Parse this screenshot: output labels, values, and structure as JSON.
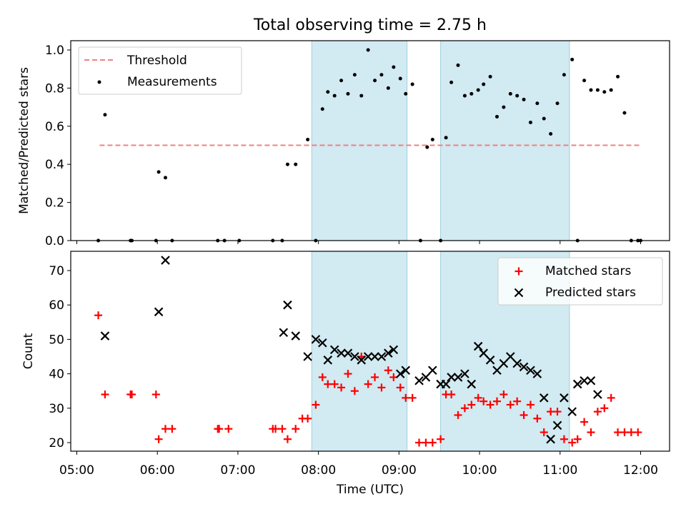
{
  "title": "Total observing time = 2.75 h",
  "colors": {
    "threshold": "#f08080",
    "measurement": "#000000",
    "matched": "#ff0000",
    "predicted": "#000000",
    "shade": "#add8e6"
  },
  "chart_data": [
    {
      "type": "scatter",
      "ylabel": "Matched/Predicted stars",
      "xlabel": "",
      "xlim": [
        "05:00",
        "12:00"
      ],
      "ylim": [
        0,
        1.05
      ],
      "yticks": [
        0.0,
        0.2,
        0.4,
        0.6,
        0.8,
        1.0
      ],
      "ytick_labels": [
        "0.0",
        "0.2",
        "0.4",
        "0.6",
        "0.8",
        "1.0"
      ],
      "shaded_intervals": [
        [
          "07:55",
          "09:06"
        ],
        [
          "09:31",
          "11:07"
        ]
      ],
      "legend": {
        "position": "upper-left",
        "threshold_label": "Threshold",
        "measurements_label": "Measurements"
      },
      "threshold": {
        "value": 0.5,
        "x_range": [
          "05:17",
          "12:00"
        ]
      },
      "series": [
        {
          "name": "Measurements",
          "marker": "dot",
          "x": [
            "05:16",
            "05:21",
            "05:40",
            "05:41",
            "05:59",
            "06:01",
            "06:06",
            "06:11",
            "06:45",
            "06:50",
            "07:01",
            "07:26",
            "07:33",
            "07:37",
            "07:43",
            "07:52",
            "07:58",
            "08:03",
            "08:07",
            "08:12",
            "08:17",
            "08:22",
            "08:27",
            "08:32",
            "08:37",
            "08:42",
            "08:47",
            "08:52",
            "08:56",
            "09:01",
            "09:05",
            "09:10",
            "09:16",
            "09:21",
            "09:25",
            "09:31",
            "09:35",
            "09:39",
            "09:44",
            "09:49",
            "09:54",
            "09:59",
            "10:03",
            "10:08",
            "10:13",
            "10:18",
            "10:23",
            "10:28",
            "10:33",
            "10:38",
            "10:43",
            "10:48",
            "10:53",
            "10:58",
            "11:03",
            "11:09",
            "11:13",
            "11:18",
            "11:23",
            "11:28",
            "11:33",
            "11:38",
            "11:43",
            "11:48",
            "11:53",
            "11:58",
            "12:00"
          ],
          "y": [
            0.0,
            0.66,
            0.0,
            0.0,
            0.0,
            0.36,
            0.33,
            0.0,
            0.0,
            0.0,
            0.0,
            0.0,
            0.0,
            0.4,
            0.4,
            0.53,
            0.0,
            0.69,
            0.78,
            0.76,
            0.84,
            0.77,
            0.87,
            0.76,
            1.0,
            0.84,
            0.87,
            0.8,
            0.91,
            0.85,
            0.77,
            0.82,
            0.0,
            0.49,
            0.53,
            0.0,
            0.54,
            0.83,
            0.92,
            0.76,
            0.77,
            0.79,
            0.82,
            0.86,
            0.65,
            0.7,
            0.77,
            0.76,
            0.74,
            0.62,
            0.72,
            0.64,
            0.56,
            0.72,
            0.87,
            0.95,
            0.0,
            0.84,
            0.79,
            0.79,
            0.78,
            0.79,
            0.86,
            0.67,
            0.0,
            0.0,
            0.0
          ]
        }
      ]
    },
    {
      "type": "scatter",
      "ylabel": "Count",
      "xlabel": "Time (UTC)",
      "xlim": [
        "05:00",
        "12:00"
      ],
      "ylim": [
        17.5,
        75.5
      ],
      "yticks": [
        20,
        30,
        40,
        50,
        60,
        70
      ],
      "ytick_labels": [
        "20",
        "30",
        "40",
        "50",
        "60",
        "70"
      ],
      "xticks": [
        "05:00",
        "06:00",
        "07:00",
        "08:00",
        "09:00",
        "10:00",
        "11:00",
        "12:00"
      ],
      "shaded_intervals": [
        [
          "07:55",
          "09:06"
        ],
        [
          "09:31",
          "11:07"
        ]
      ],
      "legend": {
        "position": "upper-right"
      },
      "series": [
        {
          "name": "Matched stars",
          "marker": "+",
          "x": [
            "05:16",
            "05:21",
            "05:40",
            "05:41",
            "05:59",
            "06:01",
            "06:06",
            "06:11",
            "06:45",
            "06:46",
            "06:53",
            "07:26",
            "07:28",
            "07:33",
            "07:37",
            "07:43",
            "07:48",
            "07:52",
            "07:58",
            "08:03",
            "08:07",
            "08:12",
            "08:17",
            "08:22",
            "08:27",
            "08:32",
            "08:37",
            "08:42",
            "08:47",
            "08:52",
            "08:56",
            "09:01",
            "09:05",
            "09:10",
            "09:15",
            "09:20",
            "09:25",
            "09:31",
            "09:35",
            "09:39",
            "09:44",
            "09:49",
            "09:54",
            "09:59",
            "10:03",
            "10:08",
            "10:13",
            "10:18",
            "10:23",
            "10:28",
            "10:33",
            "10:38",
            "10:43",
            "10:48",
            "10:53",
            "10:58",
            "11:03",
            "11:09",
            "11:13",
            "11:18",
            "11:23",
            "11:28",
            "11:33",
            "11:38",
            "11:43",
            "11:48",
            "11:53",
            "11:58"
          ],
          "y": [
            57,
            34,
            34,
            34,
            34,
            21,
            24,
            24,
            24,
            24,
            24,
            24,
            24,
            24,
            21,
            24,
            27,
            27,
            31,
            39,
            37,
            37,
            36,
            40,
            35,
            45,
            37,
            39,
            36,
            41,
            39,
            36,
            33,
            33,
            20,
            20,
            20,
            21,
            34,
            34,
            28,
            30,
            31,
            33,
            32,
            31,
            32,
            34,
            31,
            32,
            28,
            31,
            27,
            23,
            29,
            29,
            21,
            20,
            21,
            26,
            23,
            29,
            30,
            33,
            23,
            23,
            23,
            23
          ]
        },
        {
          "name": "Predicted stars",
          "marker": "x",
          "x": [
            "05:21",
            "06:01",
            "06:06",
            "07:34",
            "07:37",
            "07:43",
            "07:52",
            "07:58",
            "08:03",
            "08:07",
            "08:12",
            "08:17",
            "08:22",
            "08:27",
            "08:32",
            "08:37",
            "08:42",
            "08:47",
            "08:52",
            "08:56",
            "09:01",
            "09:05",
            "09:15",
            "09:20",
            "09:25",
            "09:31",
            "09:35",
            "09:39",
            "09:44",
            "09:49",
            "09:54",
            "09:59",
            "10:03",
            "10:08",
            "10:13",
            "10:18",
            "10:23",
            "10:28",
            "10:33",
            "10:38",
            "10:43",
            "10:48",
            "10:53",
            "10:58",
            "11:03",
            "11:09",
            "11:13",
            "11:18",
            "11:23",
            "11:28",
            "11:33",
            "11:38",
            "11:43",
            "11:48"
          ],
          "y": [
            51,
            58,
            73,
            52,
            60,
            51,
            45,
            50,
            49,
            44,
            47,
            46,
            46,
            45,
            44,
            45,
            45,
            45,
            46,
            47,
            40,
            41,
            38,
            39,
            41,
            37,
            37,
            39,
            39,
            40,
            37,
            48,
            46,
            44,
            41,
            43,
            45,
            43,
            42,
            41,
            40,
            33,
            21,
            25,
            33,
            29,
            37,
            38,
            38,
            34,
            null,
            null,
            null,
            null
          ]
        }
      ]
    }
  ]
}
